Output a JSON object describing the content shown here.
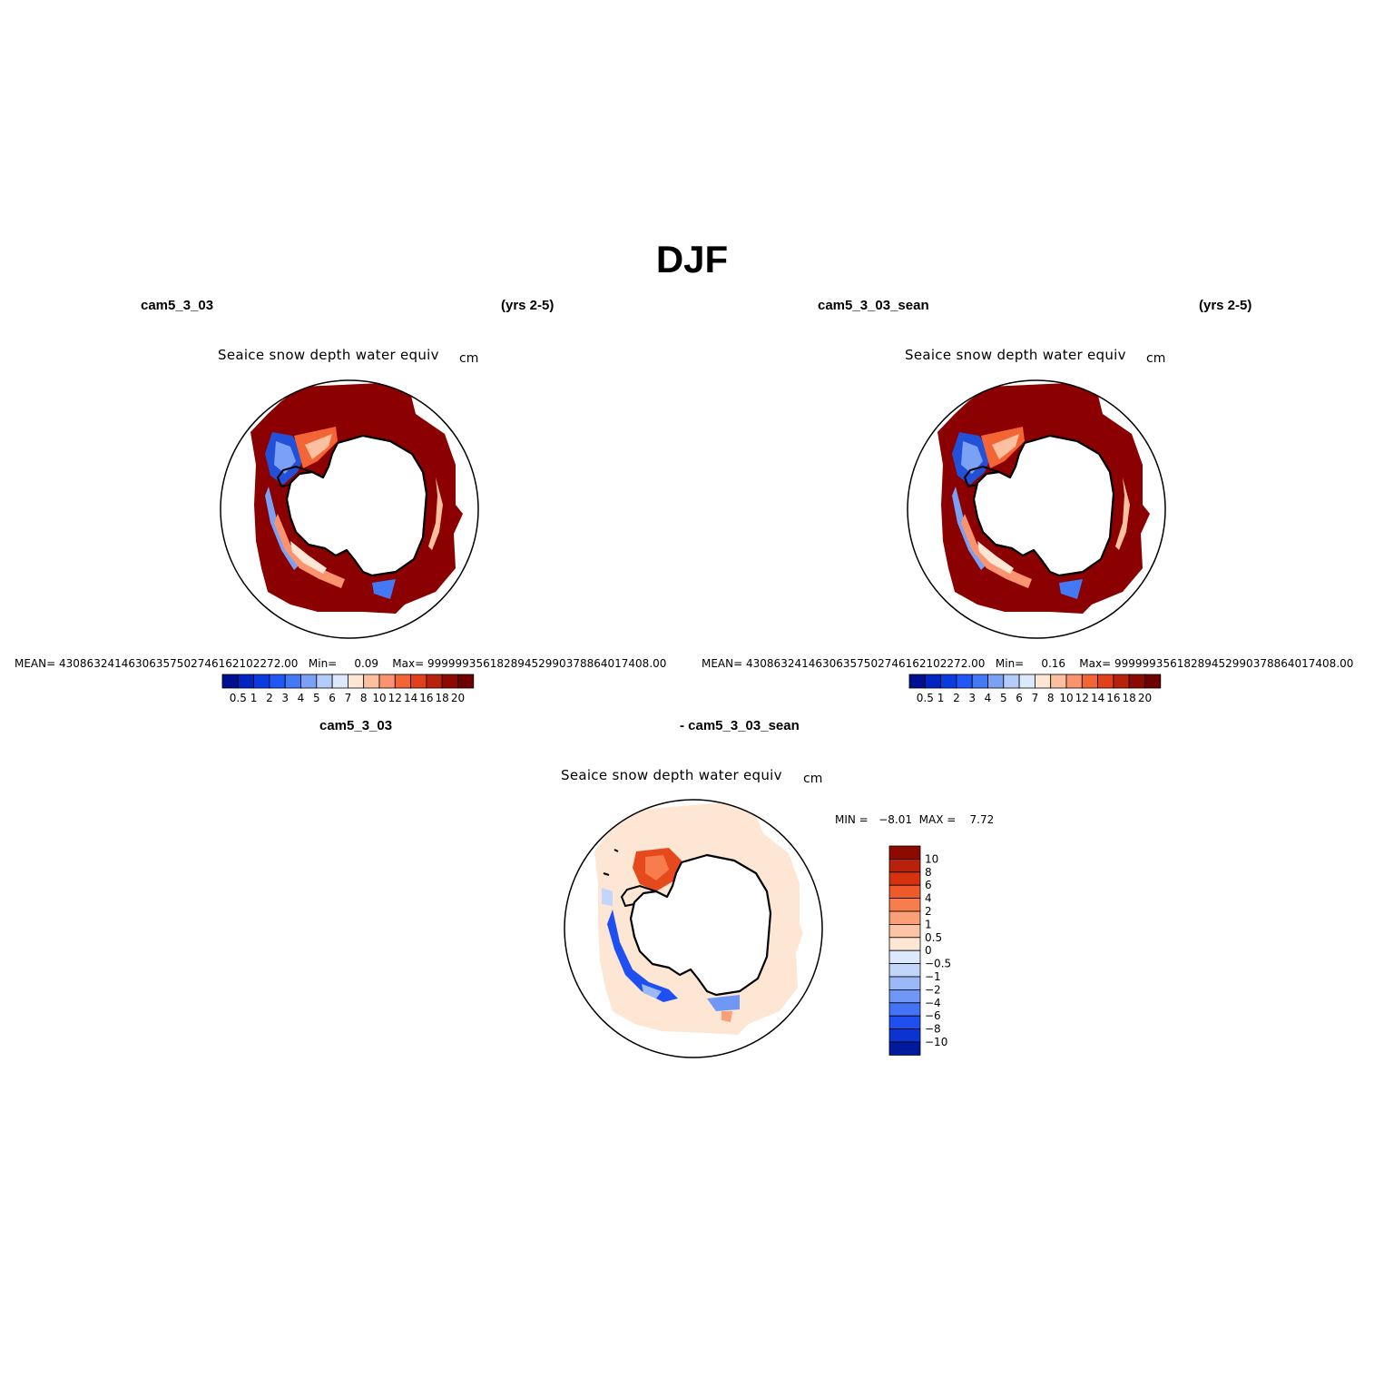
{
  "title": "DJF",
  "top_left": {
    "case": "cam5_3_03",
    "years": "(yrs 2-5)",
    "variable": "Seaice snow depth water equiv",
    "units": "cm",
    "stats": {
      "mean_label": "MEAN=",
      "mean": "43086324146306357502746162102272.00",
      "min_label": "Min=",
      "min": "0.09",
      "max_label": "Max=",
      "max": "99999935618289452990378864017408.00"
    }
  },
  "top_right": {
    "case": "cam5_3_03_sean",
    "years": "(yrs 2-5)",
    "variable": "Seaice snow depth water equiv",
    "units": "cm",
    "stats": {
      "mean_label": "MEAN=",
      "mean": "43086324146306357502746162102272.00",
      "min_label": "Min=",
      "min": "0.16",
      "max_label": "Max=",
      "max": "99999935618289452990378864017408.00"
    }
  },
  "horizontal_colorbar": {
    "levels": [
      "0.5",
      "1",
      "2",
      "3",
      "4",
      "5",
      "6",
      "7",
      "8",
      "10",
      "12",
      "14",
      "16",
      "18",
      "20"
    ],
    "colors": [
      "#000f8f",
      "#0024c2",
      "#0a3be0",
      "#2157f5",
      "#4479f5",
      "#7aa1f5",
      "#b3ccfa",
      "#dce9fc",
      "#fde6d3",
      "#fcbf9f",
      "#fa9470",
      "#f46535",
      "#e0401a",
      "#b8220c",
      "#8c0a00",
      "#6e0000"
    ]
  },
  "bottom": {
    "case_a": "cam5_3_03",
    "case_b": "- cam5_3_03_sean",
    "variable": "Seaice snow depth water equiv",
    "units": "cm",
    "min_label": "MIN =",
    "min": "−8.01",
    "max_label": "MAX =",
    "max": "7.72"
  },
  "vertical_colorbar": {
    "levels_top_to_bottom": [
      "10",
      "8",
      "6",
      "4",
      "2",
      "1",
      "0.5",
      "0",
      "−0.5",
      "−1",
      "−2",
      "−4",
      "−6",
      "−8",
      "−10"
    ],
    "colors_top_to_bottom": [
      "#8c0a00",
      "#b8220c",
      "#d7320f",
      "#ee5a2a",
      "#f77d4c",
      "#fa9f78",
      "#fcc3a6",
      "#fde6d3",
      "#dce9fc",
      "#c2d5fb",
      "#9bb9f7",
      "#6f97f5",
      "#4274f5",
      "#1f4ff0",
      "#0a33cf",
      "#001a9e"
    ]
  },
  "colors": {
    "land": "#ffffff",
    "coastline": "#000000",
    "high_snow": "#8b0000",
    "diff_background": "#fde6d3"
  }
}
